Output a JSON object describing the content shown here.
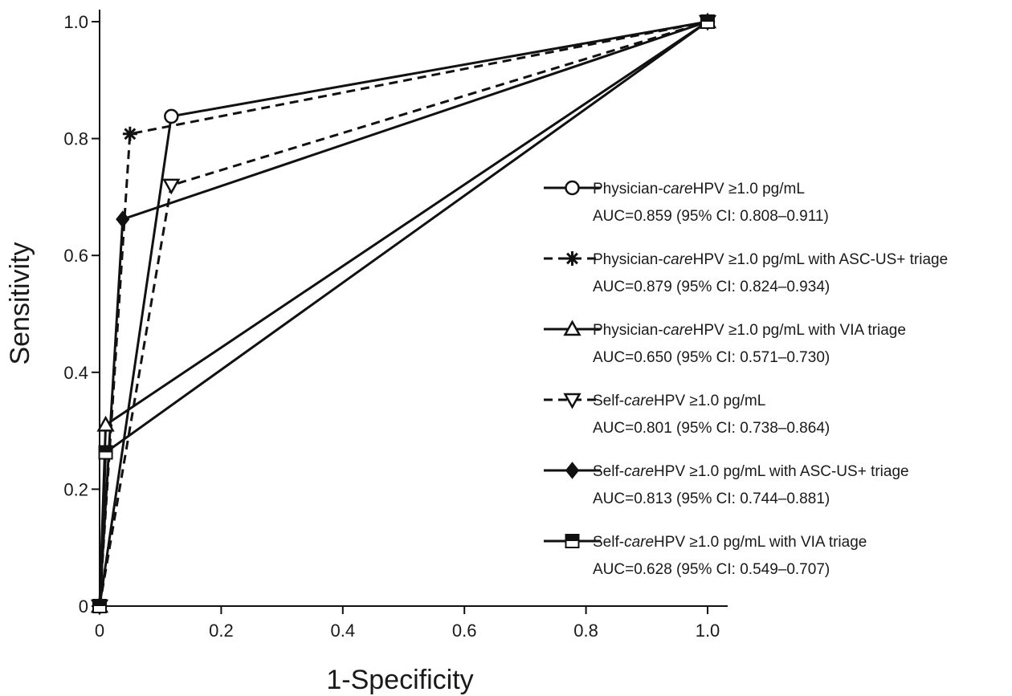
{
  "chart_data": {
    "type": "line",
    "title": "",
    "xlabel": "1-Specificity",
    "ylabel": "Sensitivity",
    "xlim": [
      0,
      1
    ],
    "ylim": [
      0,
      1
    ],
    "x_ticks": [
      "0",
      "0.2",
      "0.4",
      "0.6",
      "0.8",
      "1.0"
    ],
    "y_ticks": [
      "0",
      "0.2",
      "0.4",
      "0.6",
      "0.8",
      "1.0"
    ],
    "grid": false,
    "legend_position": "right",
    "series": [
      {
        "label_parts": [
          "Physician-",
          "care",
          "HPV ≥1.0 pg/mL"
        ],
        "auc": "AUC=0.859 (95% CI: 0.808–0.911)",
        "marker": "circle-open",
        "dash": "solid",
        "points": [
          [
            0,
            0
          ],
          [
            0.118,
            0.838
          ],
          [
            1,
            1
          ]
        ]
      },
      {
        "label_parts": [
          "Physician-",
          "care",
          "HPV ≥1.0 pg/mL with ASC-US+ triage"
        ],
        "auc": "AUC=0.879 (95% CI: 0.824–0.934)",
        "marker": "asterisk",
        "dash": "dashed",
        "points": [
          [
            0,
            0
          ],
          [
            0.05,
            0.808
          ],
          [
            1,
            1
          ]
        ]
      },
      {
        "label_parts": [
          "Physician-",
          "care",
          "HPV ≥1.0 pg/mL with VIA triage"
        ],
        "auc": "AUC=0.650 (95% CI: 0.571–0.730)",
        "marker": "triangle-up-open",
        "dash": "solid",
        "points": [
          [
            0,
            0
          ],
          [
            0.01,
            0.31
          ],
          [
            1,
            1
          ]
        ]
      },
      {
        "label_parts": [
          "Self-",
          "care",
          "HPV ≥1.0 pg/mL"
        ],
        "auc": "AUC=0.801 (95% CI: 0.738–0.864)",
        "marker": "triangle-down-open",
        "dash": "dashed",
        "points": [
          [
            0,
            0
          ],
          [
            0.118,
            0.72
          ],
          [
            1,
            1
          ]
        ]
      },
      {
        "label_parts": [
          "Self-",
          "care",
          "HPV ≥1.0 pg/mL with ASC-US+ triage"
        ],
        "auc": "AUC=0.813 (95% CI: 0.744–0.881)",
        "marker": "diamond-filled",
        "dash": "solid",
        "points": [
          [
            0,
            0
          ],
          [
            0.038,
            0.662
          ],
          [
            1,
            1
          ]
        ]
      },
      {
        "label_parts": [
          "Self-",
          "care",
          "HPV ≥1.0 pg/mL with VIA triage"
        ],
        "auc": "AUC=0.628 (95% CI: 0.549–0.707)",
        "marker": "square-half",
        "dash": "solid",
        "points": [
          [
            0,
            0
          ],
          [
            0.01,
            0.263
          ],
          [
            1,
            1
          ]
        ]
      }
    ]
  },
  "colors": {
    "ink": "#111111",
    "background": "#ffffff"
  }
}
